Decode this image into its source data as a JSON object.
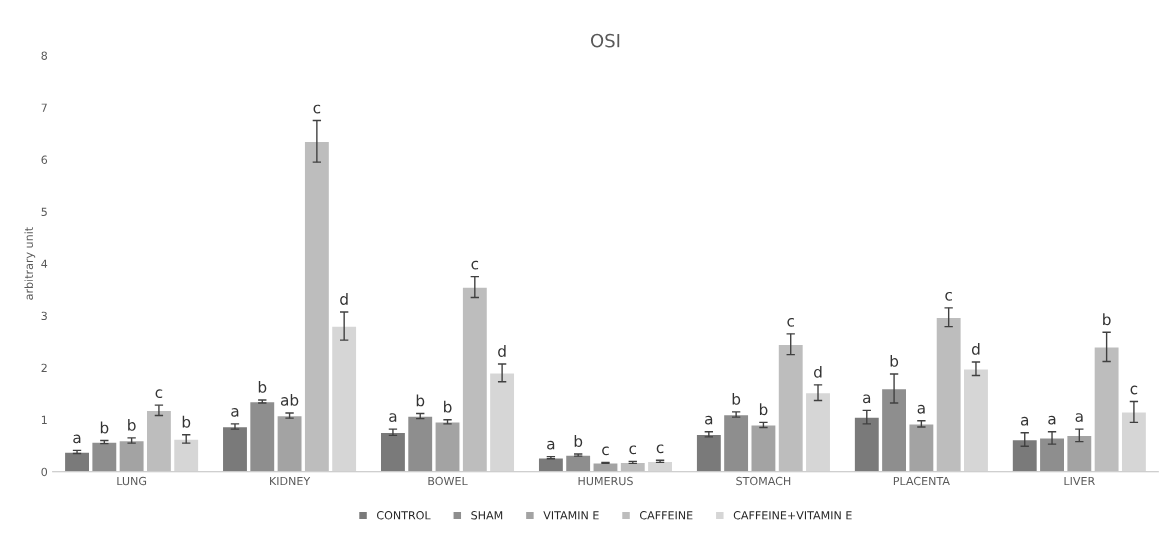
{
  "chart_data": {
    "type": "bar",
    "title": "OSI",
    "ylabel": "arbitrary unit",
    "categories": [
      "LUNG",
      "KIDNEY",
      "BOWEL",
      "HUMERUS",
      "STOMACH",
      "PLACENTA",
      "LIVER"
    ],
    "series": [
      {
        "name": "CONTROL",
        "color": "#7a7a7a",
        "values": [
          0.38,
          0.87,
          0.76,
          0.27,
          0.72,
          1.05,
          0.62
        ],
        "errors": [
          0.03,
          0.05,
          0.06,
          0.02,
          0.05,
          0.13,
          0.13
        ],
        "value_labels": [
          "a",
          "a",
          "a",
          "a",
          "a",
          "a",
          "a"
        ]
      },
      {
        "name": "SHAM",
        "color": "#8e8e8e",
        "values": [
          0.57,
          1.35,
          1.07,
          0.32,
          1.1,
          1.6,
          0.65
        ],
        "errors": [
          0.03,
          0.03,
          0.05,
          0.02,
          0.05,
          0.28,
          0.12
        ],
        "value_labels": [
          "b",
          "b",
          "b",
          "b",
          "b",
          "b",
          "a"
        ]
      },
      {
        "name": "VITAMIN E",
        "color": "#a3a3a3",
        "values": [
          0.6,
          1.08,
          0.96,
          0.17,
          0.9,
          0.92,
          0.7
        ],
        "errors": [
          0.05,
          0.05,
          0.04,
          0.01,
          0.05,
          0.06,
          0.12
        ],
        "value_labels": [
          "b",
          "ab",
          "b",
          "c",
          "b",
          "a",
          "a"
        ]
      },
      {
        "name": "CAFFEINE",
        "color": "#bdbdbd",
        "values": [
          1.18,
          6.35,
          3.55,
          0.18,
          2.45,
          2.97,
          2.4
        ],
        "errors": [
          0.1,
          0.4,
          0.2,
          0.02,
          0.2,
          0.18,
          0.28
        ],
        "value_labels": [
          "c",
          "c",
          "c",
          "c",
          "c",
          "c",
          "b"
        ]
      },
      {
        "name": "CAFFEINE+VITAMIN E",
        "color": "#d6d6d6",
        "values": [
          0.63,
          2.8,
          1.9,
          0.2,
          1.52,
          1.98,
          1.15
        ],
        "errors": [
          0.08,
          0.27,
          0.17,
          0.02,
          0.15,
          0.13,
          0.2
        ],
        "value_labels": [
          "b",
          "d",
          "d",
          "c",
          "d",
          "d",
          "c"
        ]
      }
    ],
    "ylim": [
      0,
      8
    ],
    "yticks": [
      0,
      1,
      2,
      3,
      4,
      5,
      6,
      7,
      8
    ],
    "grid": false,
    "legend": "bottom"
  }
}
